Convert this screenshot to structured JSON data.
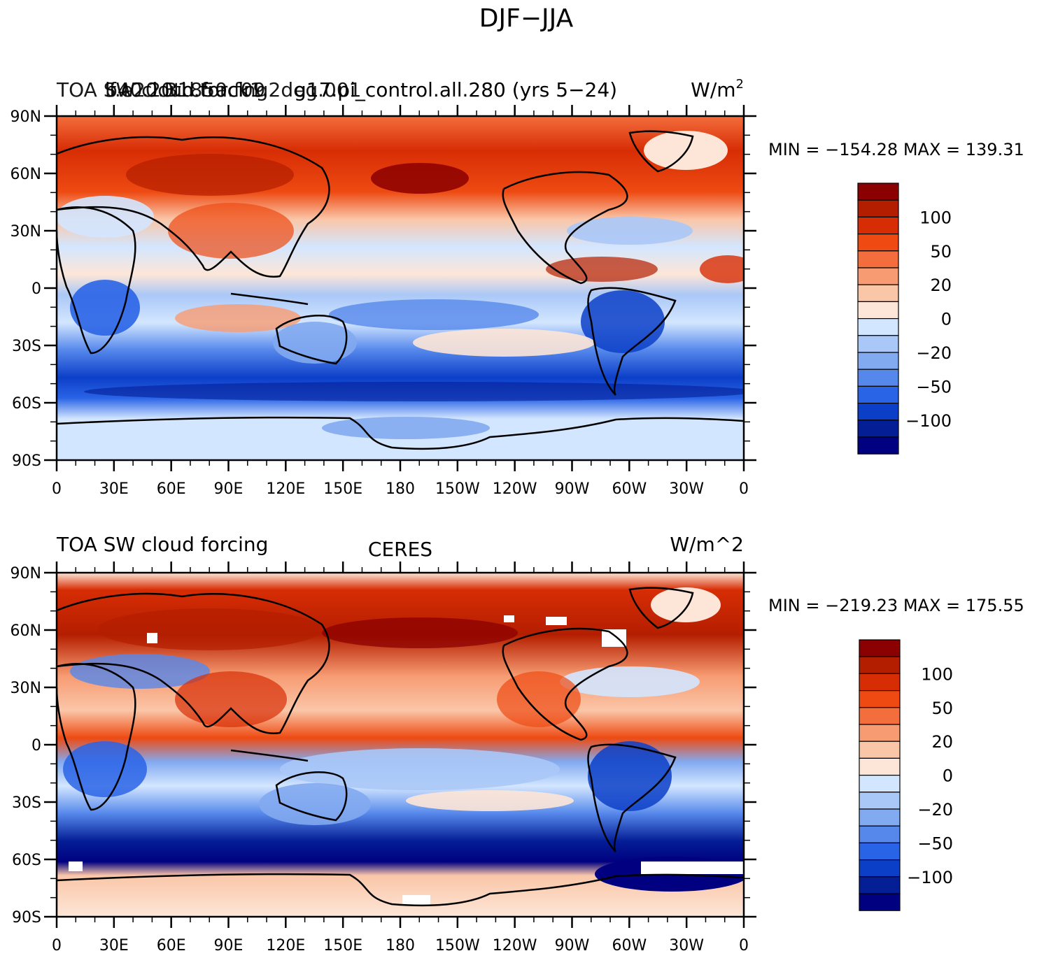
{
  "title": "DJF−JJA",
  "colorbar_labels": [
    "100",
    "50",
    "20",
    "0",
    "−20",
    "−50",
    "−100"
  ],
  "colorbar_colors": [
    "#fff",
    "#8b0000",
    "#b41e00",
    "#d72d05",
    "#ee4a12",
    "#f46e3d",
    "#f79b72",
    "#fac6a8",
    "#fde6d7",
    "#d3e6ff",
    "#aac8f7",
    "#82aaf0",
    "#5688eb",
    "#2a64e6",
    "#0c3fc8",
    "#041e96",
    "#000080"
  ],
  "colors": {
    "land_outline": "#000000",
    "ocean_neutral": "#d3e6ff"
  },
  "lat_ticks": [
    "90N",
    "60N",
    "30N",
    "0",
    "30S",
    "60S",
    "90S"
  ],
  "lon_ticks": [
    "0",
    "30E",
    "60E",
    "90E",
    "120E",
    "150E",
    "180",
    "150W",
    "120W",
    "90W",
    "60W",
    "30W",
    "0"
  ],
  "panels": [
    {
      "left_string": "TOA SW cloud forcing",
      "center_string": "b40.20th.track1.2deg.001",
      "center_overlay": "f.e20.B1850.f09",
      "run_string": "g17.pi_control.all.280 (yrs 5−24)",
      "units": "W/m",
      "units_sup": "2",
      "min_max": "MIN = −154.28 MAX = 139.31"
    },
    {
      "left_string": "TOA SW cloud forcing",
      "center_string": "CERES",
      "units": "W/m^2",
      "min_max": "MIN = −219.23 MAX = 175.55"
    }
  ]
}
